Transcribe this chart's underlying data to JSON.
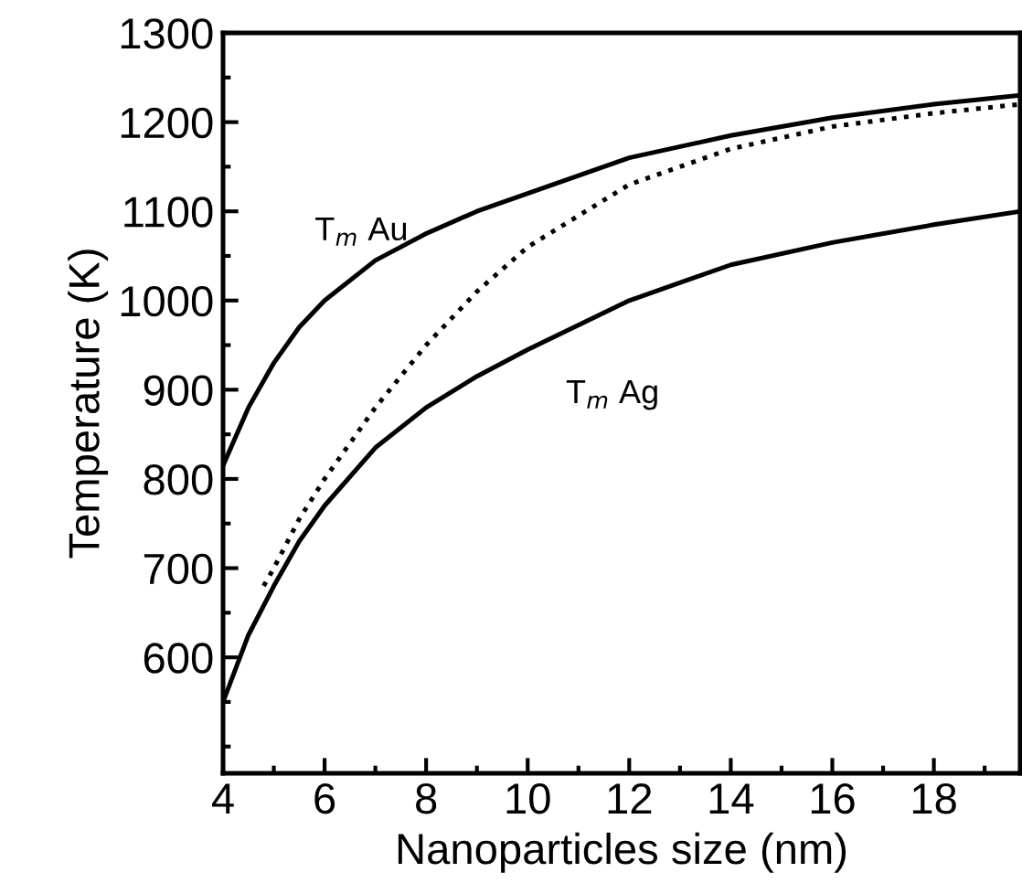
{
  "chart_data": {
    "type": "line",
    "xlabel": "Nanoparticles size (nm)",
    "ylabel": "Temperature (K)",
    "xlim": [
      4,
      19.7
    ],
    "ylim": [
      470,
      1300
    ],
    "xticks": [
      4,
      6,
      8,
      10,
      12,
      14,
      16,
      18
    ],
    "yticks": [
      600,
      700,
      800,
      900,
      1000,
      1100,
      1200,
      1300
    ],
    "grid": false,
    "legend": false,
    "marker": "none",
    "series": [
      {
        "color": "#000000",
        "line_style": "solid",
        "x": [
          4,
          4.5,
          5,
          5.5,
          6,
          7,
          8,
          9,
          10,
          12,
          14,
          16,
          18,
          19.7
        ],
        "values": [
          815,
          880,
          930,
          970,
          1000,
          1045,
          1075,
          1100,
          1120,
          1160,
          1185,
          1205,
          1220,
          1230
        ]
      },
      {
        "color": "#000000",
        "line_style": "solid",
        "x": [
          4,
          4.5,
          5,
          5.5,
          6,
          7,
          8,
          9,
          10,
          12,
          14,
          16,
          18,
          19.7
        ],
        "values": [
          550,
          625,
          680,
          730,
          770,
          835,
          880,
          915,
          945,
          1000,
          1040,
          1065,
          1085,
          1100
        ]
      },
      {
        "color": "#000000",
        "line_style": "dotted",
        "x": [
          4.8,
          5,
          5.5,
          6,
          7,
          8,
          9,
          10,
          12,
          14,
          16,
          18,
          19.7
        ],
        "values": [
          680,
          700,
          755,
          800,
          880,
          950,
          1010,
          1060,
          1130,
          1170,
          1195,
          1210,
          1220
        ]
      }
    ],
    "annotations": [
      "T$_{m}$ Au",
      "T$_{m}$ Ag"
    ]
  }
}
